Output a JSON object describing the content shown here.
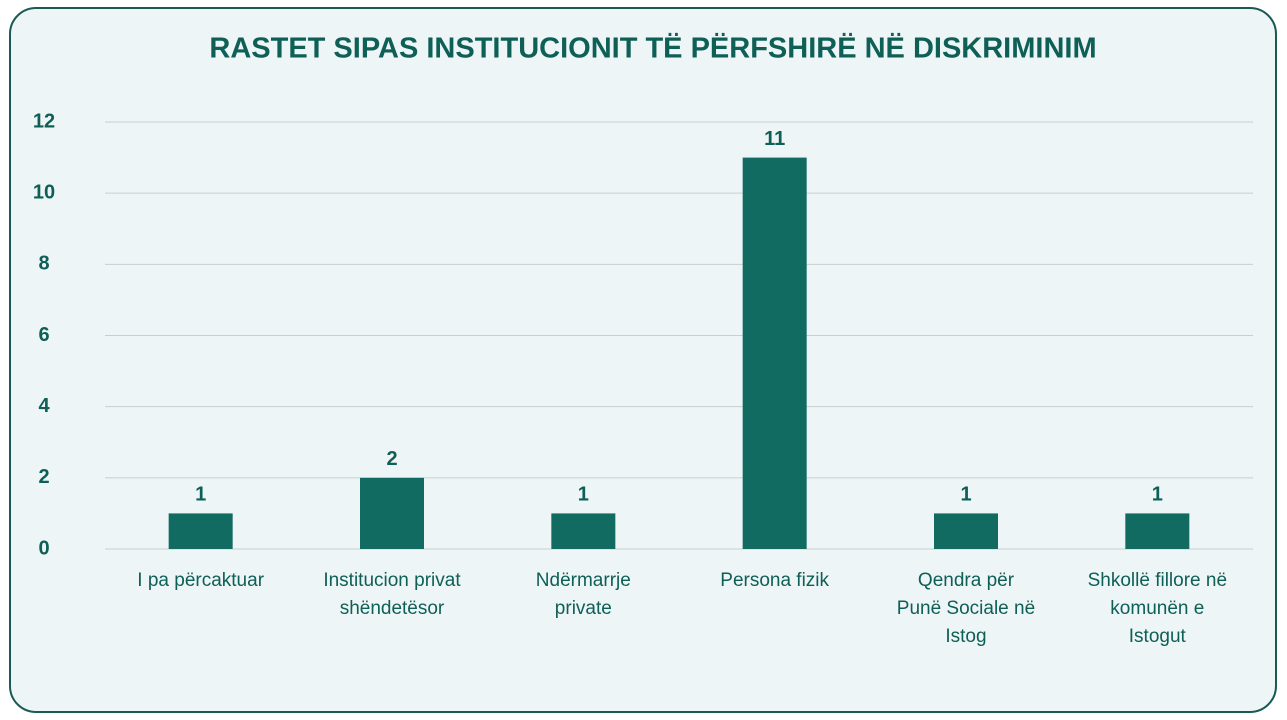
{
  "chart_data": {
    "type": "bar",
    "title": "RASTET SIPAS INSTITUCIONIT TË PËRFSHIRË NË DISKRIMINIM",
    "categories": [
      "I pa përcaktuar",
      "Institucion privat shëndetësor",
      "Ndërmarrje private",
      "Persona fizik",
      "Qendra për Punë Sociale në Istog",
      "Shkollë fillore në komunën e Istogut"
    ],
    "values": [
      1,
      2,
      1,
      11,
      1,
      1
    ],
    "color": "#116b60",
    "ylim": [
      0,
      12
    ],
    "yticks": [
      0,
      2,
      4,
      6,
      8,
      10,
      12
    ],
    "grid": true
  }
}
